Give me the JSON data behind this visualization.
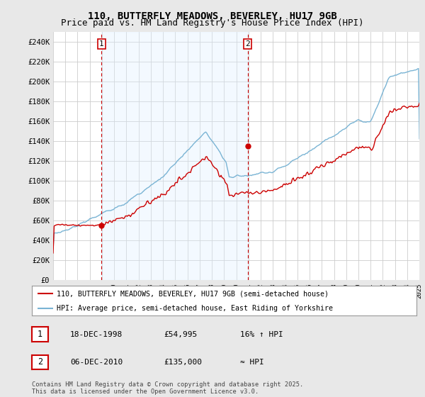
{
  "title": "110, BUTTERFLY MEADOWS, BEVERLEY, HU17 9GB",
  "subtitle": "Price paid vs. HM Land Registry's House Price Index (HPI)",
  "ylabel_ticks": [
    "£0",
    "£20K",
    "£40K",
    "£60K",
    "£80K",
    "£100K",
    "£120K",
    "£140K",
    "£160K",
    "£180K",
    "£200K",
    "£220K",
    "£240K"
  ],
  "ytick_vals": [
    0,
    20000,
    40000,
    60000,
    80000,
    100000,
    120000,
    140000,
    160000,
    180000,
    200000,
    220000,
    240000
  ],
  "ylim": [
    0,
    250000
  ],
  "xmin": 1995,
  "xmax": 2025,
  "background_color": "#e8e8e8",
  "plot_bg_color": "#ffffff",
  "grid_color": "#cccccc",
  "red_color": "#cc0000",
  "blue_color": "#7ab4d4",
  "shade_color": "#ddeeff",
  "sale1_x": 1998.96,
  "sale1_y": 54995,
  "sale2_x": 2010.93,
  "sale2_y": 135000,
  "vline1_x": 1998.96,
  "vline2_x": 2010.93,
  "legend_red_label": "110, BUTTERFLY MEADOWS, BEVERLEY, HU17 9GB (semi-detached house)",
  "legend_blue_label": "HPI: Average price, semi-detached house, East Riding of Yorkshire",
  "table_row1": [
    "1",
    "18-DEC-1998",
    "£54,995",
    "16% ↑ HPI"
  ],
  "table_row2": [
    "2",
    "06-DEC-2010",
    "£135,000",
    "≈ HPI"
  ],
  "footer": "Contains HM Land Registry data © Crown copyright and database right 2025.\nThis data is licensed under the Open Government Licence v3.0.",
  "title_fontsize": 10,
  "subtitle_fontsize": 9
}
